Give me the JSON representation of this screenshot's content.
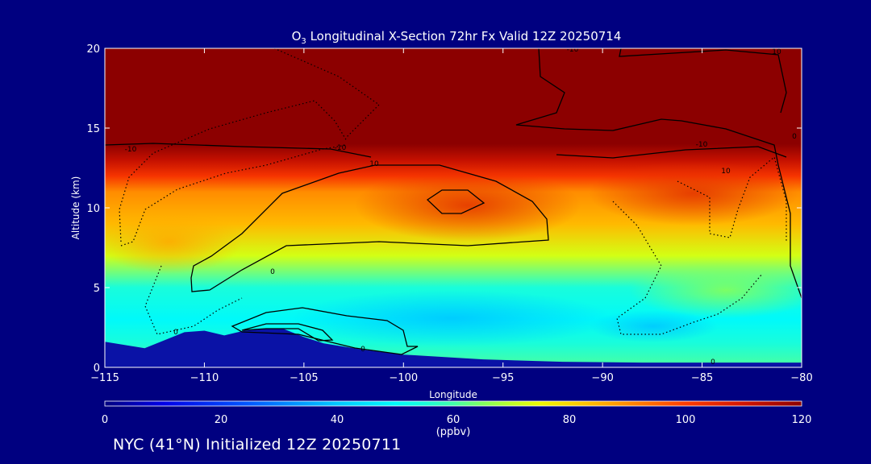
{
  "chart_data": {
    "type": "heatmap",
    "title": "O",
    "title_sub": "3",
    "title_rest": " Longitudinal X-Section 72hr  Fx Valid 12Z 20250714",
    "xlabel": "Longitude",
    "ylabel": "Altitude (km)",
    "xlim": [
      -115,
      -80
    ],
    "ylim": [
      0,
      20
    ],
    "xticks": [
      -115,
      -110,
      -105,
      -100,
      -95,
      -90,
      -85,
      -80
    ],
    "xtick_labels": [
      "−115",
      "−110",
      "−105",
      "−100",
      "−95",
      "−90",
      "−85",
      "−80"
    ],
    "yticks": [
      0,
      5,
      10,
      15,
      20
    ],
    "ytick_labels": [
      "0",
      "5",
      "10",
      "15",
      "20"
    ],
    "colorbar": {
      "range": [
        0,
        120
      ],
      "ticks": [
        0,
        20,
        40,
        60,
        80,
        100,
        120
      ],
      "tick_labels": [
        "0",
        "20",
        "40",
        "60",
        "80",
        "100",
        "120"
      ],
      "unit": "(ppbv)"
    },
    "field_profile": {
      "altitude_km": [
        0.3,
        1.5,
        3,
        5,
        7,
        9,
        11,
        12,
        13,
        14,
        16,
        20
      ],
      "ozone_ppbv": [
        60,
        55,
        50,
        55,
        72,
        84,
        90,
        102,
        112,
        120,
        120,
        120
      ]
    },
    "terrain_km": {
      "longitude": [
        -115,
        -113,
        -111,
        -110,
        -109,
        -108,
        -107,
        -106,
        -105,
        -104,
        -102,
        -100,
        -96,
        -92,
        -88,
        -84,
        -80
      ],
      "altitude_km": [
        1.6,
        1.2,
        2.2,
        2.3,
        2.0,
        2.3,
        2.4,
        2.4,
        1.9,
        1.5,
        1.1,
        0.8,
        0.5,
        0.35,
        0.3,
        0.3,
        0.3
      ]
    },
    "contour_labels": [
      "-10",
      "-10",
      "10",
      "0",
      "0",
      "0",
      "-10",
      "10",
      "-10",
      "10",
      "0",
      "0"
    ]
  },
  "footer": {
    "text": "NYC (41°N) Initialized 12Z 20250711"
  }
}
